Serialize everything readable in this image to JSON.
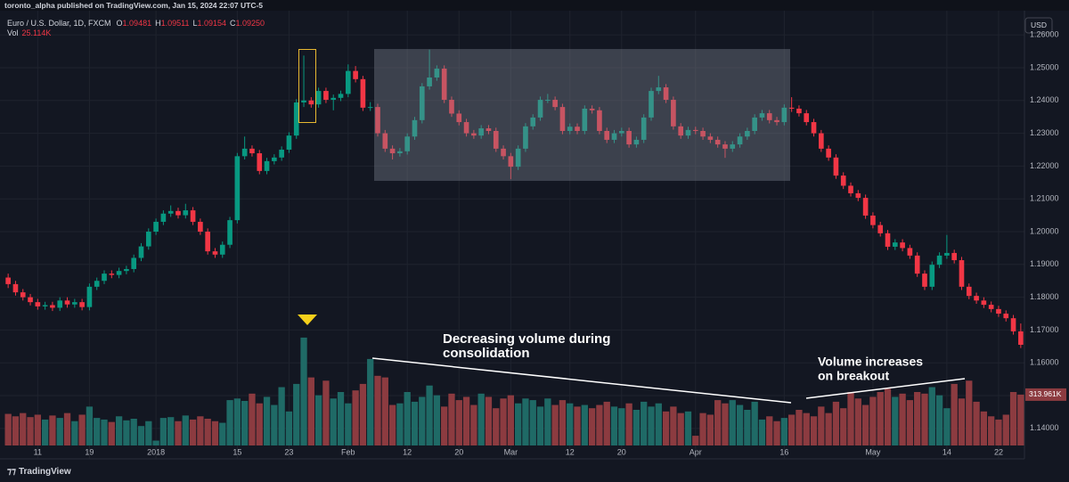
{
  "page": {
    "publisher": "toronto_alpha published on TradingView.com, Jan 15, 2024 22:07 UTC-5",
    "brand": "TradingView",
    "currency_button": "USD"
  },
  "chart_data": {
    "type": "candlestick",
    "symbol": "Euro / U.S. Dollar, 1D, FXCM",
    "header_ohlc": [
      {
        "label": "O",
        "value": "1.09481"
      },
      {
        "label": "H",
        "value": "1.09511"
      },
      {
        "label": "L",
        "value": "1.09154"
      },
      {
        "label": "C",
        "value": "1.09250"
      }
    ],
    "volume_header": {
      "label": "Vol",
      "value": "25.114K"
    },
    "last_volume_label": "313.961K",
    "annotations": [
      [
        "Decreasing volume during",
        "consolidation"
      ],
      [
        "Volume increases",
        "on breakout"
      ]
    ],
    "up_color": "#089981",
    "down_color": "#f23645",
    "volume_up_color": "#1f6a66",
    "volume_down_color": "#8c3b40",
    "grid": true,
    "ylim": [
      1.1348,
      1.2652
    ],
    "yticks": [
      {
        "value": 1.14,
        "label": "1.14000"
      },
      {
        "value": 1.15,
        "label": "1.15000"
      },
      {
        "value": 1.16,
        "label": "1.16000"
      },
      {
        "value": 1.17,
        "label": "1.17000"
      },
      {
        "value": 1.18,
        "label": "1.18000"
      },
      {
        "value": 1.19,
        "label": "1.19000"
      },
      {
        "value": 1.2,
        "label": "1.20000"
      },
      {
        "value": 1.21,
        "label": "1.21000"
      },
      {
        "value": 1.22,
        "label": "1.22000"
      },
      {
        "value": 1.23,
        "label": "1.23000"
      },
      {
        "value": 1.24,
        "label": "1.24000"
      },
      {
        "value": 1.25,
        "label": "1.25000"
      },
      {
        "value": 1.26,
        "label": "1.26000"
      }
    ],
    "y2lim": [
      0,
      2640000
    ],
    "categories": [
      null,
      null,
      null,
      null,
      "11",
      null,
      null,
      null,
      null,
      null,
      null,
      "19",
      null,
      null,
      null,
      null,
      null,
      null,
      null,
      null,
      "2018",
      null,
      null,
      null,
      null,
      null,
      null,
      null,
      null,
      null,
      null,
      "15",
      null,
      null,
      null,
      null,
      null,
      null,
      "23",
      null,
      null,
      null,
      null,
      null,
      null,
      null,
      "Feb",
      null,
      null,
      null,
      null,
      null,
      null,
      null,
      "12",
      null,
      null,
      null,
      null,
      null,
      null,
      "20",
      null,
      null,
      null,
      null,
      null,
      null,
      "Mar",
      null,
      null,
      null,
      null,
      null,
      null,
      null,
      "12",
      null,
      null,
      null,
      null,
      null,
      null,
      "20",
      null,
      null,
      null,
      null,
      null,
      null,
      null,
      null,
      null,
      "Apr",
      null,
      null,
      null,
      null,
      null,
      null,
      null,
      null,
      null,
      null,
      null,
      "16",
      null,
      null,
      null,
      null,
      null,
      null,
      null,
      null,
      null,
      null,
      null,
      "May",
      null,
      null,
      null,
      null,
      null,
      null,
      null,
      null,
      null,
      "14",
      null,
      null,
      null,
      null,
      null,
      null,
      "22",
      null,
      null,
      null
    ],
    "ohlc": [
      [
        1.186,
        1.1872,
        1.1828,
        1.184
      ],
      [
        1.184,
        1.185,
        1.1805,
        1.1815
      ],
      [
        1.1815,
        1.1825,
        1.179,
        1.18
      ],
      [
        1.18,
        1.181,
        1.1775,
        1.1785
      ],
      [
        1.1785,
        1.1795,
        1.1762,
        1.1772
      ],
      [
        1.1772,
        1.1786,
        1.1762,
        1.1776
      ],
      [
        1.1776,
        1.1786,
        1.1758,
        1.1768
      ],
      [
        1.1768,
        1.18,
        1.1758,
        1.179
      ],
      [
        1.179,
        1.18,
        1.1768,
        1.1778
      ],
      [
        1.1778,
        1.1795,
        1.1768,
        1.1785
      ],
      [
        1.1785,
        1.1795,
        1.176,
        1.177
      ],
      [
        1.177,
        1.1842,
        1.176,
        1.1832
      ],
      [
        1.1832,
        1.186,
        1.1822,
        1.185
      ],
      [
        1.185,
        1.1882,
        1.184,
        1.1872
      ],
      [
        1.1872,
        1.1882,
        1.1858,
        1.1868
      ],
      [
        1.1868,
        1.189,
        1.1858,
        1.188
      ],
      [
        1.188,
        1.1896,
        1.187,
        1.1886
      ],
      [
        1.1886,
        1.193,
        1.1876,
        1.192
      ],
      [
        1.192,
        1.1965,
        1.191,
        1.1955
      ],
      [
        1.1955,
        1.201,
        1.1945,
        1.2
      ],
      [
        1.2,
        1.204,
        1.199,
        1.203
      ],
      [
        1.203,
        1.2065,
        1.202,
        1.2055
      ],
      [
        1.2055,
        1.208,
        1.2045,
        1.2063
      ],
      [
        1.2063,
        1.2073,
        1.204,
        1.205
      ],
      [
        1.205,
        1.2085,
        1.204,
        1.2065
      ],
      [
        1.2065,
        1.2075,
        1.202,
        1.203
      ],
      [
        1.203,
        1.204,
        1.199,
        1.2
      ],
      [
        1.2,
        1.201,
        1.193,
        1.194
      ],
      [
        1.194,
        1.195,
        1.192,
        1.193
      ],
      [
        1.193,
        1.197,
        1.192,
        1.196
      ],
      [
        1.196,
        1.2045,
        1.195,
        1.2035
      ],
      [
        1.2035,
        1.224,
        1.2025,
        1.223
      ],
      [
        1.223,
        1.229,
        1.222,
        1.2253
      ],
      [
        1.2253,
        1.2263,
        1.2229,
        1.2239
      ],
      [
        1.2239,
        1.2249,
        1.2175,
        1.2185
      ],
      [
        1.2185,
        1.2225,
        1.2175,
        1.2215
      ],
      [
        1.2215,
        1.2236,
        1.2205,
        1.2226
      ],
      [
        1.2226,
        1.226,
        1.2216,
        1.225
      ],
      [
        1.225,
        1.2303,
        1.224,
        1.2293
      ],
      [
        1.2293,
        1.2404,
        1.2283,
        1.2394
      ],
      [
        1.2394,
        1.2537,
        1.238,
        1.24
      ],
      [
        1.24,
        1.241,
        1.2378,
        1.2388
      ],
      [
        1.2388,
        1.2439,
        1.2378,
        1.2429
      ],
      [
        1.2429,
        1.2439,
        1.2392,
        1.2402
      ],
      [
        1.2402,
        1.2418,
        1.237,
        1.2408
      ],
      [
        1.2408,
        1.243,
        1.2398,
        1.242
      ],
      [
        1.242,
        1.251,
        1.241,
        1.249
      ],
      [
        1.249,
        1.2505,
        1.2455,
        1.2465
      ],
      [
        1.2465,
        1.2475,
        1.2368,
        1.2378
      ],
      [
        1.2378,
        1.2395,
        1.2368,
        1.238
      ],
      [
        1.238,
        1.239,
        1.229,
        1.23
      ],
      [
        1.23,
        1.231,
        1.2243,
        1.2253
      ],
      [
        1.2253,
        1.2263,
        1.222,
        1.2239
      ],
      [
        1.2239,
        1.2255,
        1.2229,
        1.2245
      ],
      [
        1.2245,
        1.23,
        1.2235,
        1.229
      ],
      [
        1.229,
        1.235,
        1.228,
        1.234
      ],
      [
        1.234,
        1.2453,
        1.233,
        1.2443
      ],
      [
        1.2443,
        1.2555,
        1.2433,
        1.247
      ],
      [
        1.247,
        1.2507,
        1.246,
        1.2497
      ],
      [
        1.2497,
        1.2507,
        1.2392,
        1.2402
      ],
      [
        1.2402,
        1.2412,
        1.235,
        1.236
      ],
      [
        1.236,
        1.237,
        1.2324,
        1.2334
      ],
      [
        1.2334,
        1.2344,
        1.229,
        1.23
      ],
      [
        1.23,
        1.231,
        1.2283,
        1.2293
      ],
      [
        1.2293,
        1.2325,
        1.2283,
        1.2315
      ],
      [
        1.2315,
        1.2325,
        1.2297,
        1.2307
      ],
      [
        1.2307,
        1.2317,
        1.2243,
        1.2253
      ],
      [
        1.2253,
        1.2263,
        1.222,
        1.223
      ],
      [
        1.223,
        1.224,
        1.216,
        1.2198
      ],
      [
        1.2198,
        1.2263,
        1.2188,
        1.2253
      ],
      [
        1.2253,
        1.2331,
        1.2243,
        1.2321
      ],
      [
        1.2321,
        1.2358,
        1.2311,
        1.2348
      ],
      [
        1.2348,
        1.2412,
        1.2338,
        1.2402
      ],
      [
        1.2402,
        1.242,
        1.2392,
        1.2402
      ],
      [
        1.2402,
        1.2412,
        1.237,
        1.238
      ],
      [
        1.238,
        1.239,
        1.2297,
        1.2307
      ],
      [
        1.2307,
        1.233,
        1.2297,
        1.232
      ],
      [
        1.232,
        1.233,
        1.2297,
        1.2307
      ],
      [
        1.2307,
        1.2385,
        1.2297,
        1.2375
      ],
      [
        1.2375,
        1.2385,
        1.236,
        1.237
      ],
      [
        1.237,
        1.238,
        1.2297,
        1.2307
      ],
      [
        1.2307,
        1.2317,
        1.227,
        1.228
      ],
      [
        1.228,
        1.231,
        1.227,
        1.23
      ],
      [
        1.23,
        1.2317,
        1.229,
        1.2307
      ],
      [
        1.2307,
        1.2317,
        1.2256,
        1.2266
      ],
      [
        1.2266,
        1.229,
        1.2256,
        1.228
      ],
      [
        1.228,
        1.2358,
        1.227,
        1.2348
      ],
      [
        1.2348,
        1.2439,
        1.2338,
        1.2429
      ],
      [
        1.2429,
        1.2475,
        1.2419,
        1.244
      ],
      [
        1.244,
        1.245,
        1.2392,
        1.2402
      ],
      [
        1.2402,
        1.2412,
        1.2311,
        1.2321
      ],
      [
        1.2321,
        1.2331,
        1.2283,
        1.2293
      ],
      [
        1.2293,
        1.232,
        1.2283,
        1.231
      ],
      [
        1.231,
        1.232,
        1.2297,
        1.2307
      ],
      [
        1.2307,
        1.2317,
        1.228,
        1.229
      ],
      [
        1.229,
        1.23,
        1.227,
        1.228
      ],
      [
        1.228,
        1.229,
        1.2256,
        1.2266
      ],
      [
        1.2266,
        1.2276,
        1.2225,
        1.2253
      ],
      [
        1.2253,
        1.2276,
        1.2243,
        1.2266
      ],
      [
        1.2266,
        1.23,
        1.2256,
        1.229
      ],
      [
        1.229,
        1.2317,
        1.228,
        1.2307
      ],
      [
        1.2307,
        1.2358,
        1.2297,
        1.2348
      ],
      [
        1.2348,
        1.2371,
        1.2338,
        1.2361
      ],
      [
        1.2361,
        1.2371,
        1.233,
        1.234
      ],
      [
        1.234,
        1.235,
        1.2324,
        1.2334
      ],
      [
        1.2334,
        1.2388,
        1.2324,
        1.2378
      ],
      [
        1.2378,
        1.241,
        1.2365,
        1.2375
      ],
      [
        1.2375,
        1.2385,
        1.2351,
        1.2361
      ],
      [
        1.2361,
        1.2371,
        1.2324,
        1.2334
      ],
      [
        1.2334,
        1.2344,
        1.229,
        1.23
      ],
      [
        1.23,
        1.231,
        1.2243,
        1.2253
      ],
      [
        1.2253,
        1.2263,
        1.2216,
        1.2226
      ],
      [
        1.2226,
        1.2236,
        1.2161,
        1.2171
      ],
      [
        1.2171,
        1.2181,
        1.213,
        1.214
      ],
      [
        1.214,
        1.215,
        1.2107,
        1.2117
      ],
      [
        1.2117,
        1.2127,
        1.2093,
        1.2103
      ],
      [
        1.2103,
        1.2113,
        1.2039,
        1.2049
      ],
      [
        1.2049,
        1.2059,
        1.201,
        1.202
      ],
      [
        1.202,
        1.203,
        1.1985,
        1.1995
      ],
      [
        1.1995,
        1.2005,
        1.1944,
        1.1954
      ],
      [
        1.1954,
        1.1977,
        1.1944,
        1.1967
      ],
      [
        1.1967,
        1.1977,
        1.194,
        1.195
      ],
      [
        1.195,
        1.196,
        1.1917,
        1.1927
      ],
      [
        1.1927,
        1.1937,
        1.1862,
        1.1872
      ],
      [
        1.1872,
        1.1882,
        1.1822,
        1.1832
      ],
      [
        1.1832,
        1.1909,
        1.1822,
        1.1899
      ],
      [
        1.1899,
        1.1937,
        1.1889,
        1.1927
      ],
      [
        1.1927,
        1.199,
        1.1917,
        1.1935
      ],
      [
        1.1935,
        1.1945,
        1.1903,
        1.1913
      ],
      [
        1.1913,
        1.1923,
        1.1822,
        1.1832
      ],
      [
        1.1832,
        1.1842,
        1.1794,
        1.1804
      ],
      [
        1.1804,
        1.1814,
        1.178,
        1.179
      ],
      [
        1.179,
        1.18,
        1.1767,
        1.1777
      ],
      [
        1.1777,
        1.1787,
        1.1754,
        1.1764
      ],
      [
        1.1764,
        1.1774,
        1.174,
        1.175
      ],
      [
        1.175,
        1.176,
        1.1726,
        1.1736
      ],
      [
        1.1736,
        1.1746,
        1.1686,
        1.1696
      ],
      [
        1.1696,
        1.172,
        1.1645,
        1.1655
      ]
    ],
    "volume": [
      195000,
      180000,
      200000,
      175000,
      190000,
      160000,
      185000,
      170000,
      200000,
      150000,
      190000,
      240000,
      170000,
      160000,
      145000,
      180000,
      155000,
      165000,
      120000,
      150000,
      30000,
      170000,
      175000,
      150000,
      185000,
      160000,
      180000,
      165000,
      150000,
      140000,
      280000,
      290000,
      275000,
      320000,
      260000,
      300000,
      250000,
      360000,
      210000,
      380000,
      666000,
      420000,
      310000,
      400000,
      290000,
      330000,
      260000,
      340000,
      380000,
      534000,
      430000,
      420000,
      250000,
      260000,
      330000,
      270000,
      300000,
      370000,
      310000,
      240000,
      320000,
      280000,
      300000,
      250000,
      320000,
      300000,
      230000,
      290000,
      310000,
      260000,
      290000,
      280000,
      240000,
      290000,
      250000,
      280000,
      260000,
      240000,
      250000,
      230000,
      250000,
      270000,
      240000,
      230000,
      260000,
      220000,
      270000,
      240000,
      260000,
      210000,
      240000,
      200000,
      210000,
      60000,
      200000,
      190000,
      280000,
      260000,
      280000,
      250000,
      220000,
      270000,
      160000,
      180000,
      150000,
      170000,
      190000,
      220000,
      200000,
      180000,
      240000,
      200000,
      270000,
      230000,
      330000,
      290000,
      250000,
      300000,
      330000,
      350000,
      300000,
      320000,
      280000,
      330000,
      320000,
      360000,
      310000,
      230000,
      380000,
      290000,
      400000,
      270000,
      210000,
      180000,
      160000,
      190000,
      330000,
      313961
    ]
  }
}
